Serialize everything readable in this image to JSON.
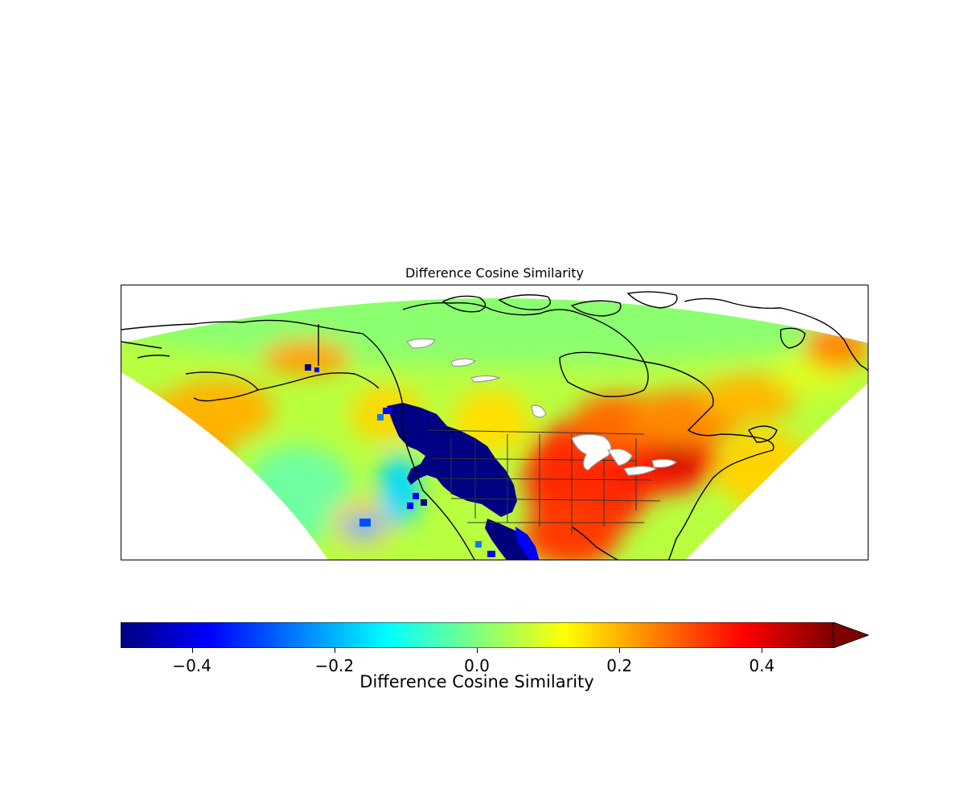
{
  "title": "Difference Cosine Similarity",
  "colorbar": {
    "label": "Difference Cosine Similarity",
    "min": -0.5,
    "max": 0.5,
    "extend": "max",
    "colormap": "jet",
    "ticks": [
      {
        "value": -0.4,
        "label": "−0.4"
      },
      {
        "value": -0.2,
        "label": "−0.2"
      },
      {
        "value": 0.0,
        "label": "0.0"
      },
      {
        "value": 0.2,
        "label": "0.2"
      },
      {
        "value": 0.4,
        "label": "0.4"
      }
    ],
    "stops": [
      "#00007f",
      "#0000ff",
      "#007fff",
      "#00ffff",
      "#7fff7f",
      "#ffff00",
      "#ff7f00",
      "#ff0000",
      "#7f0000"
    ]
  },
  "map": {
    "region": "North America",
    "projection": "Lambert conformal",
    "coastline_color": "#000000",
    "lake_color": "#ffffff",
    "lake_outline_color": "#999999"
  }
}
